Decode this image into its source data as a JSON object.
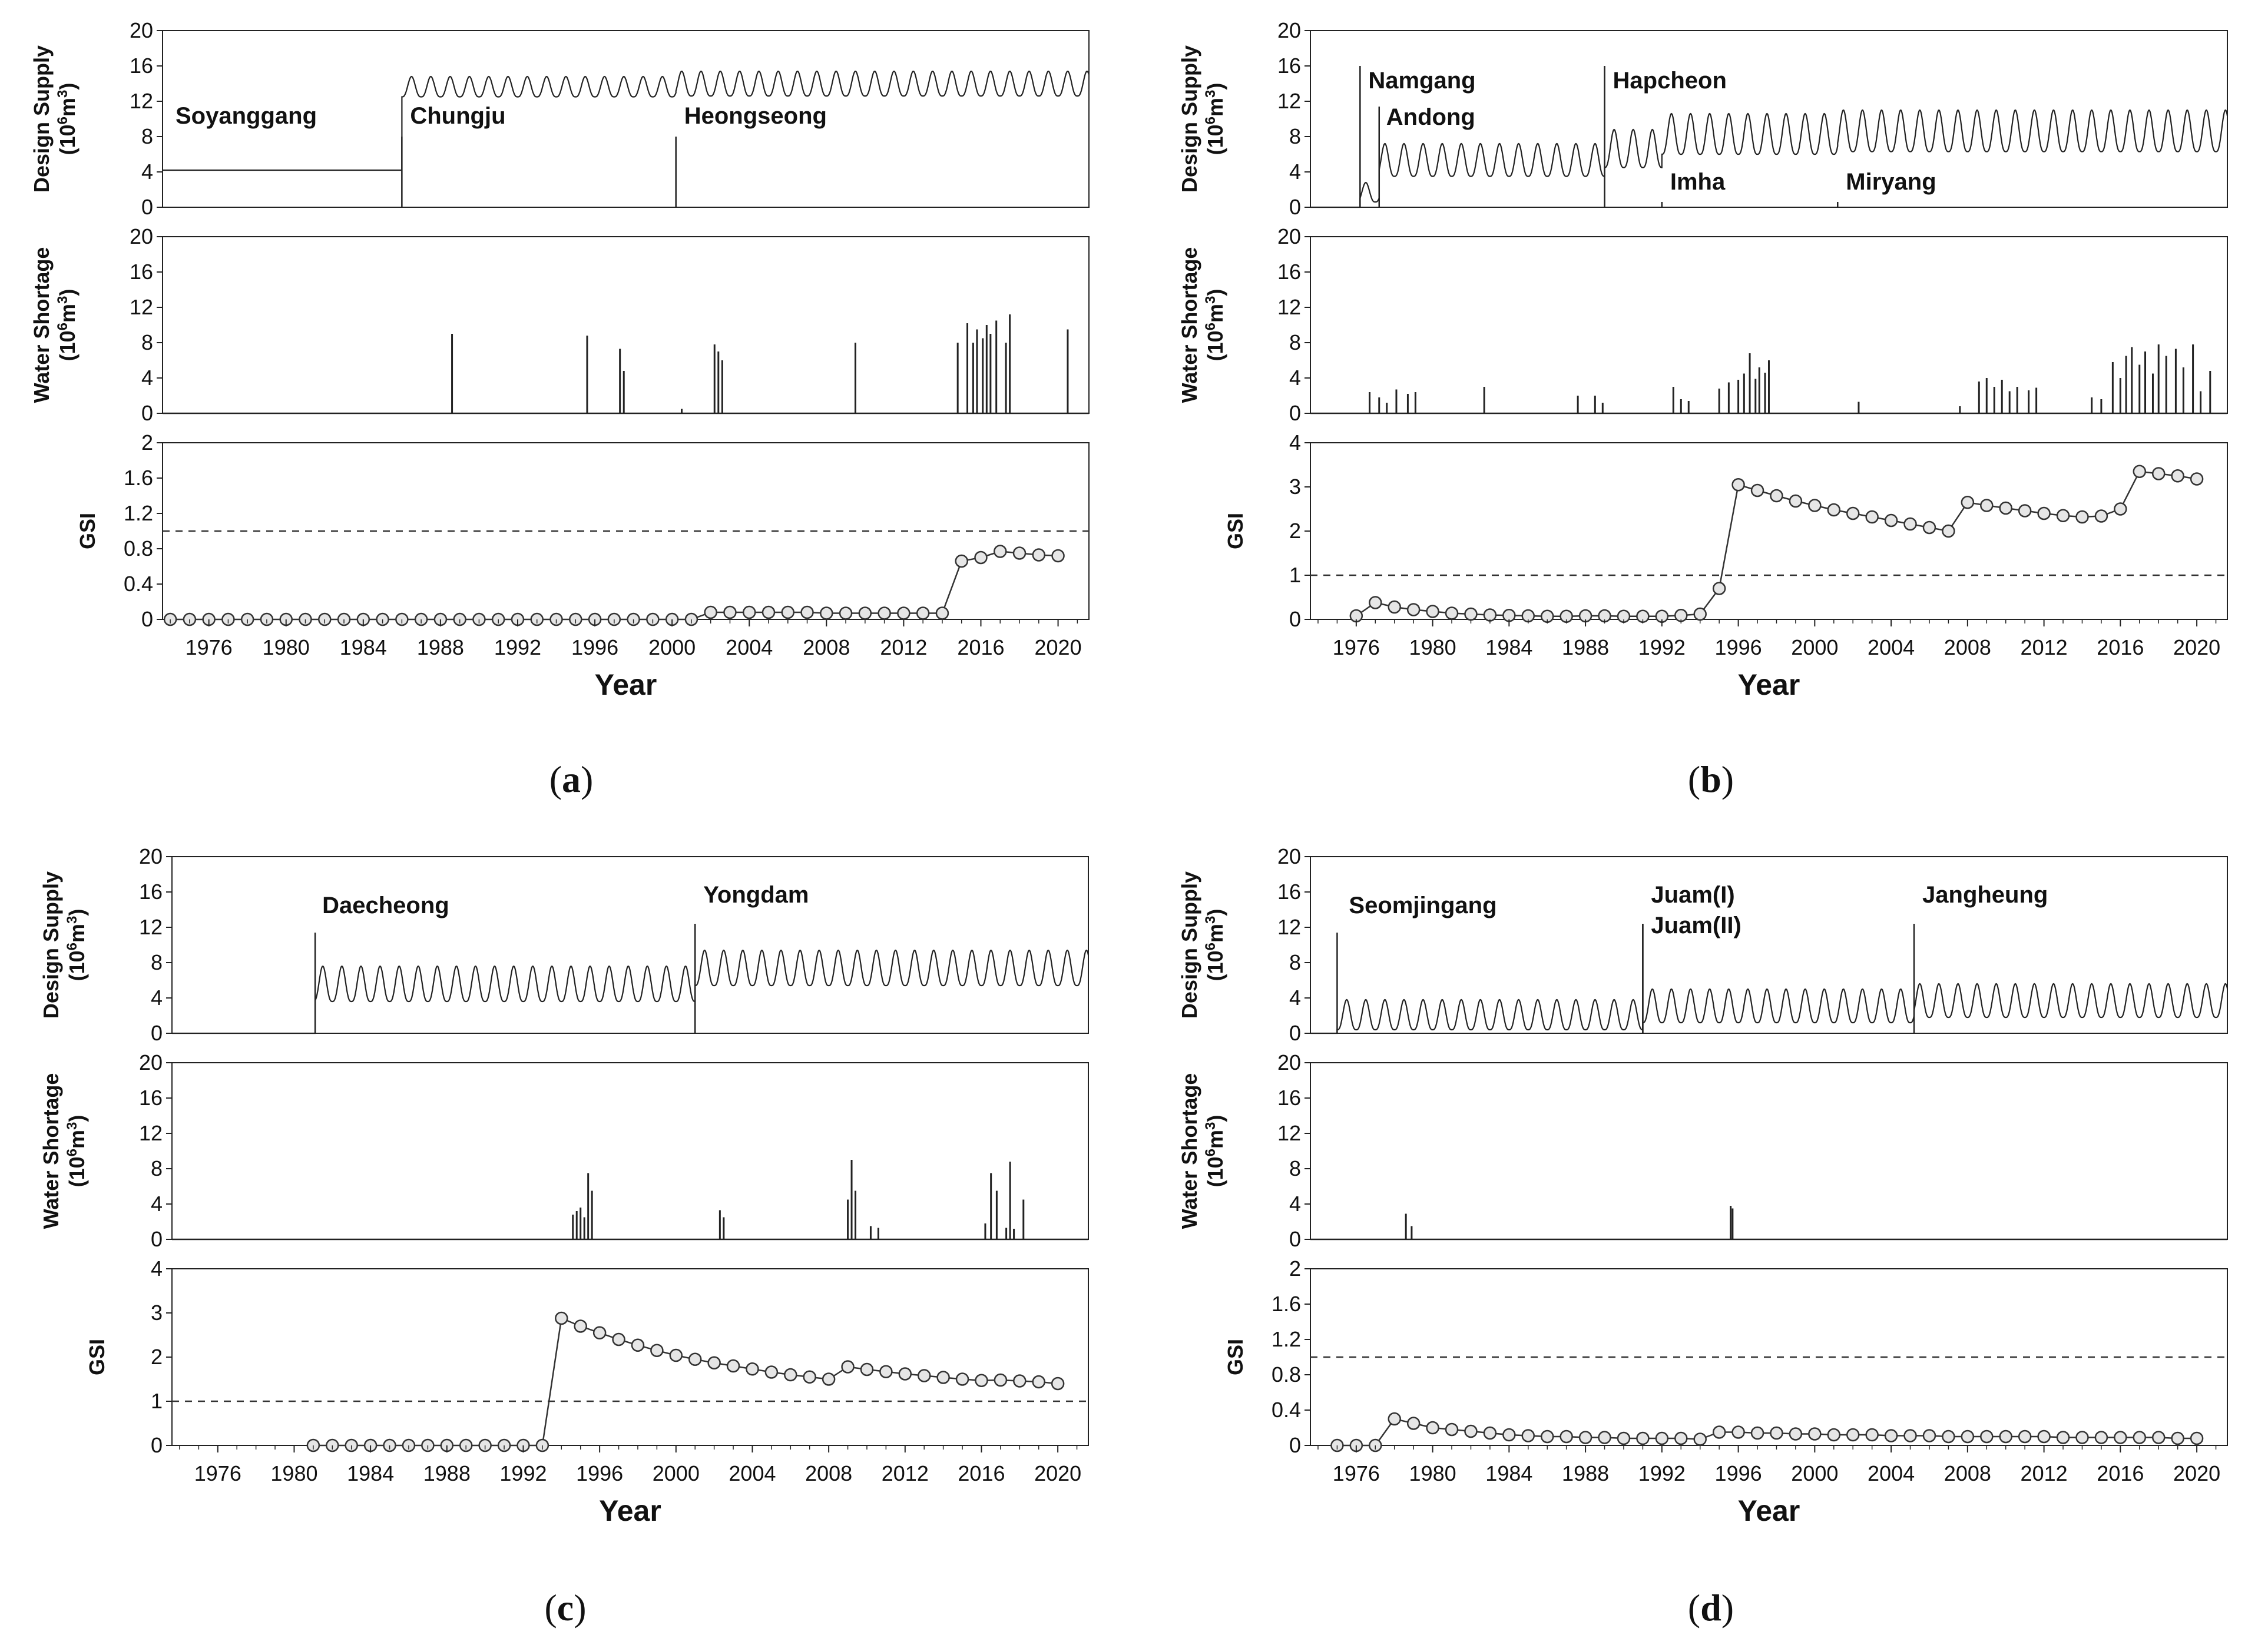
{
  "figure": {
    "xlabel": "Year",
    "year_ticks": [
      "1976",
      "1980",
      "1984",
      "1988",
      "1992",
      "1996",
      "2000",
      "2004",
      "2008",
      "2012",
      "2016",
      "2020"
    ],
    "x_range": [
      1973.6,
      2021.6
    ],
    "y_labels": {
      "design_supply": [
        "Design Supply",
        "(10",
        "6",
        "m",
        "3",
        ")"
      ],
      "water_shortage": [
        "Water Shortage",
        "(10",
        "6",
        "m",
        "3",
        ")"
      ],
      "gsi": "GSI"
    },
    "y_ticks": {
      "supply": [
        "0",
        "4",
        "8",
        "12",
        "16",
        "20"
      ],
      "gsi_2": [
        "0",
        "0.4",
        "0.8",
        "1.2",
        "1.6",
        "2"
      ],
      "gsi_4": [
        "0",
        "1",
        "2",
        "3",
        "4"
      ]
    },
    "gsi_threshold": 1
  },
  "chart_data": [
    {
      "type": "line",
      "panel": "a",
      "caption": "(a)",
      "title": "",
      "xlabel": "Year",
      "ylabel": "Design Supply / Water Shortage (10^6 m^3) / GSI",
      "supply_ylim": [
        0,
        20
      ],
      "shortage_ylim": [
        0,
        20
      ],
      "gsi_ylim": [
        0,
        2
      ],
      "reservoirs": [
        {
          "name": "Soyanggang",
          "start": 1973.6
        },
        {
          "name": "Chungju",
          "start": 1986.0
        },
        {
          "name": "Heongseong",
          "start": 2000.2
        }
      ],
      "supply_segments": [
        {
          "start": 1973.6,
          "end": 1986.0,
          "base": 4.2,
          "peak": 4.2
        },
        {
          "start": 1986.0,
          "end": 2000.2,
          "base": 12.5,
          "peak": 14.8
        },
        {
          "start": 2000.2,
          "end": 2021.6,
          "base": 12.6,
          "peak": 15.4
        }
      ],
      "shortage_events": [
        [
          1988.6,
          9.0
        ],
        [
          1995.6,
          8.8
        ],
        [
          1997.3,
          7.3
        ],
        [
          1997.5,
          4.8
        ],
        [
          2002.2,
          7.8
        ],
        [
          2002.4,
          7.0
        ],
        [
          2002.6,
          6.0
        ],
        [
          2009.5,
          8.0
        ],
        [
          2014.8,
          8.0
        ],
        [
          2015.3,
          10.2
        ],
        [
          2015.6,
          8.0
        ],
        [
          2015.8,
          9.5
        ],
        [
          2016.1,
          8.5
        ],
        [
          2016.3,
          10.0
        ],
        [
          2016.5,
          9.0
        ],
        [
          2016.8,
          10.5
        ],
        [
          2017.3,
          8.0
        ],
        [
          2017.5,
          11.2
        ],
        [
          2020.5,
          9.5
        ],
        [
          2000.5,
          0.5
        ]
      ],
      "gsi": {
        "x": [
          1974,
          1975,
          1976,
          1977,
          1978,
          1979,
          1980,
          1981,
          1982,
          1983,
          1984,
          1985,
          1986,
          1987,
          1988,
          1989,
          1990,
          1991,
          1992,
          1993,
          1994,
          1995,
          1996,
          1997,
          1998,
          1999,
          2000,
          2001,
          2002,
          2003,
          2004,
          2005,
          2006,
          2007,
          2008,
          2009,
          2010,
          2011,
          2012,
          2013,
          2014,
          2015,
          2016,
          2017,
          2018,
          2019,
          2020
        ],
        "y": [
          0,
          0,
          0,
          0,
          0,
          0,
          0,
          0,
          0,
          0,
          0,
          0,
          0,
          0,
          0,
          0,
          0,
          0,
          0,
          0,
          0,
          0,
          0,
          0,
          0,
          0,
          0,
          0,
          0.08,
          0.08,
          0.08,
          0.08,
          0.08,
          0.08,
          0.07,
          0.07,
          0.07,
          0.07,
          0.07,
          0.07,
          0.07,
          0.66,
          0.7,
          0.77,
          0.75,
          0.73,
          0.72
        ]
      }
    },
    {
      "type": "line",
      "panel": "b",
      "caption": "(b)",
      "title": "",
      "xlabel": "Year",
      "ylabel": "Design Supply / Water Shortage (10^6 m^3) / GSI",
      "supply_ylim": [
        0,
        20
      ],
      "shortage_ylim": [
        0,
        20
      ],
      "gsi_ylim": [
        0,
        4
      ],
      "reservoirs": [
        {
          "name": "Namgang",
          "start": 1976.2
        },
        {
          "name": "Andong",
          "start": 1977.2
        },
        {
          "name": "Hapcheon",
          "start": 1989.0
        },
        {
          "name": "Imha",
          "start": 1992.0
        },
        {
          "name": "Miryang",
          "start": 2001.2
        }
      ],
      "supply_segments": [
        {
          "start": 1973.6,
          "end": 1976.2,
          "base": 0,
          "peak": 0
        },
        {
          "start": 1976.2,
          "end": 1977.2,
          "base": 0.6,
          "peak": 2.8
        },
        {
          "start": 1977.2,
          "end": 1989.0,
          "base": 3.5,
          "peak": 7.2
        },
        {
          "start": 1989.0,
          "end": 1992.0,
          "base": 4.5,
          "peak": 8.8
        },
        {
          "start": 1992.0,
          "end": 2001.2,
          "base": 6.0,
          "peak": 10.6
        },
        {
          "start": 2001.2,
          "end": 2021.6,
          "base": 6.3,
          "peak": 11.0
        }
      ],
      "shortage_events": [
        [
          1976.7,
          2.4
        ],
        [
          1977.2,
          1.8
        ],
        [
          1977.6,
          1.2
        ],
        [
          1978.1,
          2.7
        ],
        [
          1978.7,
          2.2
        ],
        [
          1979.1,
          2.4
        ],
        [
          1982.7,
          3.0
        ],
        [
          1987.6,
          2.0
        ],
        [
          1988.5,
          2.0
        ],
        [
          1988.9,
          1.2
        ],
        [
          1992.6,
          3.0
        ],
        [
          1993.0,
          1.6
        ],
        [
          1993.4,
          1.4
        ],
        [
          1995.0,
          2.8
        ],
        [
          1995.5,
          3.5
        ],
        [
          1996.0,
          3.8
        ],
        [
          1996.3,
          4.5
        ],
        [
          1996.6,
          6.8
        ],
        [
          1996.9,
          3.9
        ],
        [
          1997.1,
          5.2
        ],
        [
          1997.4,
          4.6
        ],
        [
          1997.6,
          6.0
        ],
        [
          2002.3,
          1.3
        ],
        [
          2007.6,
          0.8
        ],
        [
          2008.6,
          3.6
        ],
        [
          2009.0,
          4.0
        ],
        [
          2009.4,
          3.0
        ],
        [
          2009.8,
          3.8
        ],
        [
          2010.2,
          2.5
        ],
        [
          2010.6,
          3.0
        ],
        [
          2011.2,
          2.6
        ],
        [
          2011.6,
          2.9
        ],
        [
          2014.5,
          1.8
        ],
        [
          2015.0,
          1.6
        ],
        [
          2015.6,
          5.8
        ],
        [
          2016.0,
          4.0
        ],
        [
          2016.3,
          6.5
        ],
        [
          2016.6,
          7.5
        ],
        [
          2017.0,
          5.5
        ],
        [
          2017.3,
          7.0
        ],
        [
          2017.7,
          4.5
        ],
        [
          2018.0,
          7.8
        ],
        [
          2018.4,
          6.5
        ],
        [
          2018.9,
          7.3
        ],
        [
          2019.3,
          5.2
        ],
        [
          2019.8,
          7.8
        ],
        [
          2020.2,
          2.5
        ],
        [
          2020.7,
          4.8
        ]
      ],
      "gsi": {
        "x": [
          1976,
          1977,
          1978,
          1979,
          1980,
          1981,
          1982,
          1983,
          1984,
          1985,
          1986,
          1987,
          1988,
          1989,
          1990,
          1991,
          1992,
          1993,
          1994,
          1995,
          1996,
          1997,
          1998,
          1999,
          2000,
          2001,
          2002,
          2003,
          2004,
          2005,
          2006,
          2007,
          2008,
          2009,
          2010,
          2011,
          2012,
          2013,
          2014,
          2015,
          2016,
          2017,
          2018,
          2019,
          2020
        ],
        "y": [
          0.08,
          0.38,
          0.28,
          0.22,
          0.18,
          0.14,
          0.12,
          0.1,
          0.09,
          0.08,
          0.07,
          0.07,
          0.08,
          0.08,
          0.07,
          0.07,
          0.07,
          0.09,
          0.12,
          0.7,
          3.05,
          2.92,
          2.8,
          2.68,
          2.58,
          2.48,
          2.4,
          2.32,
          2.24,
          2.16,
          2.08,
          2.0,
          2.65,
          2.58,
          2.52,
          2.46,
          2.4,
          2.35,
          2.32,
          2.34,
          2.5,
          3.35,
          3.3,
          3.25,
          3.18
        ]
      }
    },
    {
      "type": "line",
      "panel": "c",
      "caption": "(c)",
      "title": "",
      "xlabel": "Year",
      "ylabel": "Design Supply / Water Shortage (10^6 m^3) / GSI",
      "supply_ylim": [
        0,
        20
      ],
      "shortage_ylim": [
        0,
        20
      ],
      "gsi_ylim": [
        0,
        4
      ],
      "reservoirs": [
        {
          "name": "Daecheong",
          "start": 1981.1
        },
        {
          "name": "Yongdam",
          "start": 2001.0
        }
      ],
      "supply_segments": [
        {
          "start": 1973.6,
          "end": 1981.1,
          "base": 0,
          "peak": 0
        },
        {
          "start": 1981.1,
          "end": 2001.0,
          "base": 3.6,
          "peak": 7.6
        },
        {
          "start": 2001.0,
          "end": 2021.6,
          "base": 5.4,
          "peak": 9.4
        }
      ],
      "shortage_events": [
        [
          1994.6,
          2.8
        ],
        [
          1994.8,
          3.2
        ],
        [
          1995.0,
          3.6
        ],
        [
          1995.2,
          2.5
        ],
        [
          1995.4,
          7.5
        ],
        [
          1995.6,
          5.5
        ],
        [
          2002.3,
          3.3
        ],
        [
          2002.5,
          2.5
        ],
        [
          2009.0,
          4.5
        ],
        [
          2009.2,
          9.0
        ],
        [
          2009.4,
          5.5
        ],
        [
          2010.2,
          1.5
        ],
        [
          2010.6,
          1.3
        ],
        [
          2016.2,
          1.8
        ],
        [
          2016.5,
          7.5
        ],
        [
          2016.8,
          5.5
        ],
        [
          2017.3,
          1.3
        ],
        [
          2017.5,
          8.8
        ],
        [
          2017.7,
          1.2
        ],
        [
          2018.2,
          4.5
        ]
      ],
      "gsi": {
        "x": [
          1981,
          1982,
          1983,
          1984,
          1985,
          1986,
          1987,
          1988,
          1989,
          1990,
          1991,
          1992,
          1993,
          1994,
          1995,
          1996,
          1997,
          1998,
          1999,
          2000,
          2001,
          2002,
          2003,
          2004,
          2005,
          2006,
          2007,
          2008,
          2009,
          2010,
          2011,
          2012,
          2013,
          2014,
          2015,
          2016,
          2017,
          2018,
          2019,
          2020
        ],
        "y": [
          0,
          0,
          0,
          0,
          0,
          0,
          0,
          0,
          0,
          0,
          0,
          0,
          0,
          2.88,
          2.7,
          2.55,
          2.4,
          2.27,
          2.15,
          2.04,
          1.95,
          1.87,
          1.8,
          1.73,
          1.66,
          1.6,
          1.55,
          1.5,
          1.78,
          1.72,
          1.67,
          1.62,
          1.58,
          1.54,
          1.5,
          1.47,
          1.48,
          1.46,
          1.44,
          1.4
        ]
      }
    },
    {
      "type": "line",
      "panel": "d",
      "caption": "(d)",
      "title": "",
      "xlabel": "Year",
      "ylabel": "Design Supply / Water Shortage (10^6 m^3) / GSI",
      "supply_ylim": [
        0,
        20
      ],
      "shortage_ylim": [
        0,
        20
      ],
      "gsi_ylim": [
        0,
        2
      ],
      "reservoirs": [
        {
          "name": "Seomjingang",
          "start": 1975.0
        },
        {
          "name": "Juam(I)",
          "start": 1991.0
        },
        {
          "name": "Juam(II)",
          "start": 1991.0
        },
        {
          "name": "Jangheung",
          "start": 2005.2
        }
      ],
      "supply_segments": [
        {
          "start": 1973.6,
          "end": 1975.0,
          "base": 0,
          "peak": 0
        },
        {
          "start": 1975.0,
          "end": 1991.0,
          "base": 0.4,
          "peak": 3.8
        },
        {
          "start": 1991.0,
          "end": 2005.2,
          "base": 1.2,
          "peak": 5.0
        },
        {
          "start": 2005.2,
          "end": 2021.6,
          "base": 1.8,
          "peak": 5.6
        }
      ],
      "shortage_events": [
        [
          1978.6,
          2.9
        ],
        [
          1978.9,
          1.5
        ],
        [
          1995.6,
          3.8
        ],
        [
          1995.7,
          3.5
        ]
      ],
      "gsi": {
        "x": [
          1975,
          1976,
          1977,
          1978,
          1979,
          1980,
          1981,
          1982,
          1983,
          1984,
          1985,
          1986,
          1987,
          1988,
          1989,
          1990,
          1991,
          1992,
          1993,
          1994,
          1995,
          1996,
          1997,
          1998,
          1999,
          2000,
          2001,
          2002,
          2003,
          2004,
          2005,
          2006,
          2007,
          2008,
          2009,
          2010,
          2011,
          2012,
          2013,
          2014,
          2015,
          2016,
          2017,
          2018,
          2019,
          2020
        ],
        "y": [
          0,
          0,
          0,
          0.3,
          0.25,
          0.2,
          0.18,
          0.16,
          0.14,
          0.12,
          0.11,
          0.1,
          0.1,
          0.09,
          0.09,
          0.08,
          0.08,
          0.08,
          0.08,
          0.07,
          0.15,
          0.15,
          0.14,
          0.14,
          0.13,
          0.13,
          0.12,
          0.12,
          0.12,
          0.11,
          0.11,
          0.11,
          0.1,
          0.1,
          0.1,
          0.1,
          0.1,
          0.1,
          0.09,
          0.09,
          0.09,
          0.09,
          0.09,
          0.09,
          0.08,
          0.08
        ]
      }
    }
  ]
}
